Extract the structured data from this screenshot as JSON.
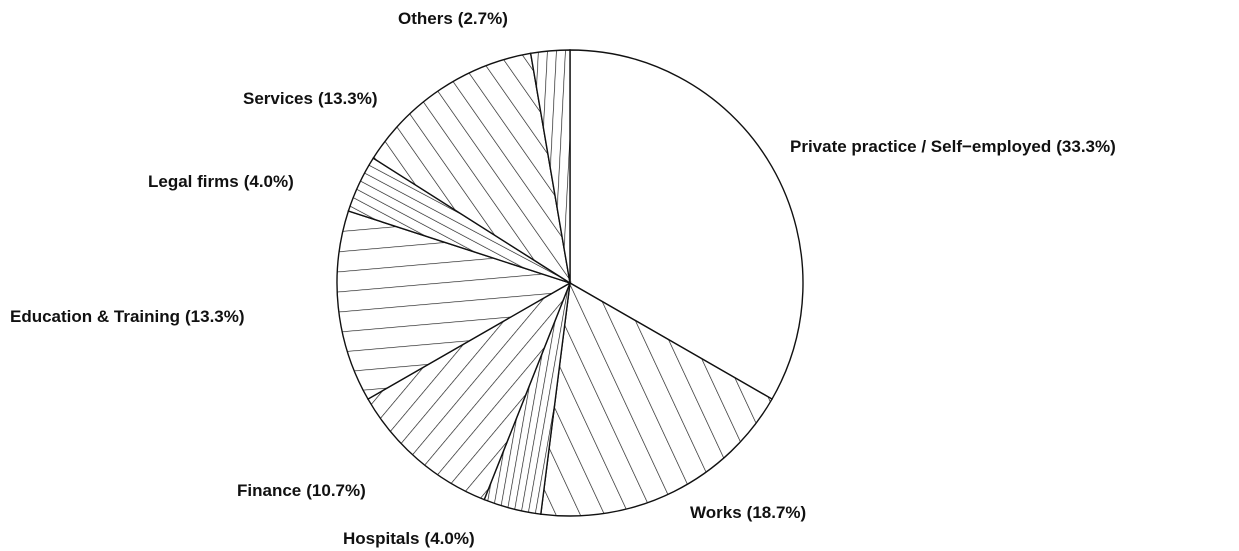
{
  "chart_data": {
    "type": "pie",
    "categories": [
      "Private practice / Self−employed",
      "Works",
      "Hospitals",
      "Finance",
      "Education & Training",
      "Legal firms",
      "Services",
      "Others"
    ],
    "values": [
      33.3,
      18.7,
      4.0,
      10.7,
      13.3,
      4.0,
      13.3,
      2.7
    ],
    "value_labels": [
      "(33.3%)",
      "(18.7%)",
      "(4.0%)",
      "(10.7%)",
      "(13.3%)",
      "(4.0%)",
      "(13.3%)",
      "(2.7%)"
    ]
  }
}
